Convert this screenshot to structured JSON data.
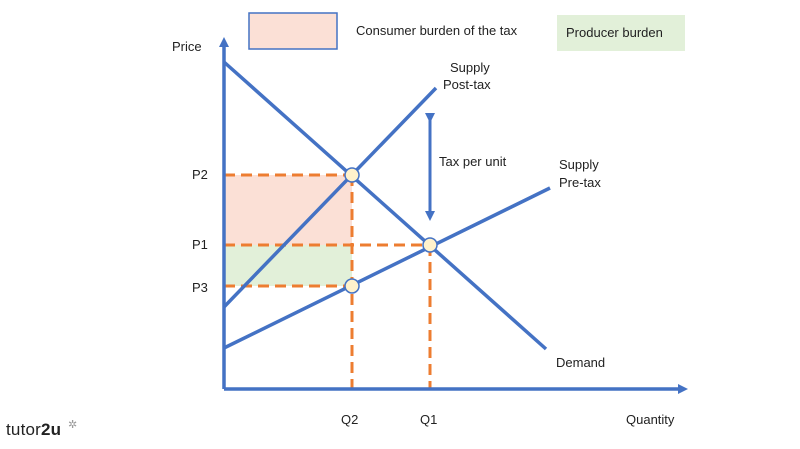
{
  "legend": {
    "consumer_label": "Consumer burden of the tax",
    "producer_label": "Producer burden",
    "consumer_color": "#fbe0d6",
    "producer_color": "#e2f0d9",
    "box_border_color": "#4472c4"
  },
  "axes": {
    "y_label": "Price",
    "x_label": "Quantity"
  },
  "price_ticks": {
    "p2": "P2",
    "p1": "P1",
    "p3": "P3"
  },
  "quantity_ticks": {
    "q2": "Q2",
    "q1": "Q1"
  },
  "curves": {
    "supply_post_tax_line1": "Supply",
    "supply_post_tax_line2": "Post-tax",
    "supply_pre_tax_line1": "Supply",
    "supply_pre_tax_line2": "Pre-tax",
    "demand": "Demand"
  },
  "annotation": {
    "tax_per_unit": "Tax per unit"
  },
  "colors": {
    "line": "#4472c4",
    "guide": "#ed7d31",
    "consumer_fill": "#fbe0d6",
    "producer_fill": "#e2f0d9",
    "point_fill": "#fff2cc"
  },
  "brand": {
    "text_light": "tutor",
    "text_bold": "2u"
  }
}
